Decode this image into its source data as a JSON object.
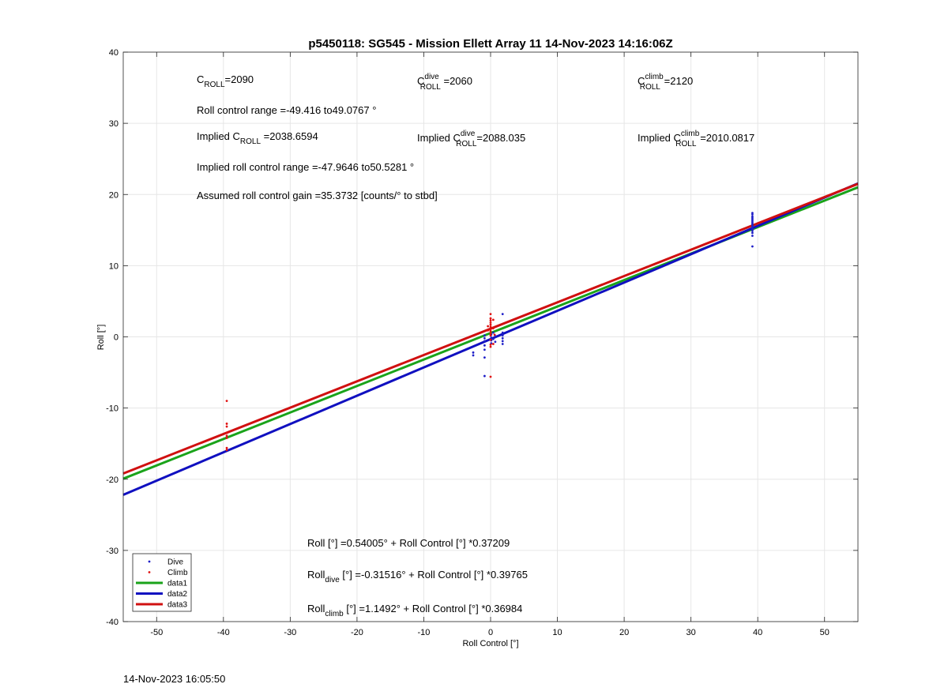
{
  "chart_data": {
    "type": "scatter",
    "title": "p5450118: SG545 - Mission Ellett Array 11 14-Nov-2023 14:16:06Z",
    "xlabel": "Roll Control [°]",
    "ylabel": "Roll [°]",
    "xlim": [
      -55,
      55
    ],
    "ylim": [
      -40,
      40
    ],
    "xticks": [
      -50,
      -40,
      -30,
      -20,
      -10,
      0,
      10,
      20,
      30,
      40,
      50
    ],
    "yticks": [
      -40,
      -30,
      -20,
      -10,
      0,
      10,
      20,
      30,
      40
    ],
    "grid": true,
    "legend_position": "bottom-left",
    "series": [
      {
        "name": "Dive",
        "kind": "points",
        "color": "#1f1fc8",
        "points": [
          [
            39.2,
            12.7
          ],
          [
            39.2,
            14.2
          ],
          [
            39.2,
            14.6
          ],
          [
            39.2,
            14.9
          ],
          [
            39.2,
            15.1
          ],
          [
            39.2,
            15.3
          ],
          [
            39.2,
            15.5
          ],
          [
            39.2,
            15.7
          ],
          [
            39.2,
            15.9
          ],
          [
            39.2,
            16.1
          ],
          [
            39.2,
            16.3
          ],
          [
            39.2,
            16.5
          ],
          [
            39.2,
            16.7
          ],
          [
            39.2,
            16.9
          ],
          [
            39.2,
            17.2
          ],
          [
            39.2,
            17.4
          ],
          [
            -0.9,
            -5.5
          ],
          [
            -0.9,
            -2.9
          ],
          [
            -0.9,
            -1.8
          ],
          [
            -0.9,
            -1.2
          ],
          [
            -0.9,
            -0.6
          ],
          [
            -0.9,
            -0.2
          ],
          [
            -0.9,
            0.2
          ],
          [
            -2.6,
            -2.2
          ],
          [
            -2.6,
            -2.6
          ],
          [
            0.1,
            -0.9
          ],
          [
            0.1,
            -0.5
          ],
          [
            0.1,
            -0.1
          ],
          [
            0.1,
            0.3
          ],
          [
            0.4,
            0.6
          ],
          [
            0.4,
            -0.3
          ],
          [
            0.7,
            -0.7
          ],
          [
            0.7,
            0.1
          ],
          [
            1.8,
            3.2
          ],
          [
            1.8,
            0.6
          ],
          [
            1.8,
            0.2
          ],
          [
            1.8,
            -0.2
          ],
          [
            1.8,
            -0.6
          ],
          [
            1.8,
            -1.0
          ]
        ]
      },
      {
        "name": "Climb",
        "kind": "points",
        "color": "#e01010",
        "points": [
          [
            -39.5,
            -9.0
          ],
          [
            -39.5,
            -12.2
          ],
          [
            -39.5,
            -12.6
          ],
          [
            -39.5,
            -13.5
          ],
          [
            -39.5,
            -13.9
          ],
          [
            -39.5,
            -14.2
          ],
          [
            -39.5,
            -15.6
          ],
          [
            -39.5,
            -15.9
          ],
          [
            0.0,
            3.2
          ],
          [
            0.0,
            2.6
          ],
          [
            0.0,
            2.3
          ],
          [
            0.0,
            2.0
          ],
          [
            0.0,
            1.7
          ],
          [
            0.0,
            1.4
          ],
          [
            0.0,
            1.1
          ],
          [
            0.0,
            0.8
          ],
          [
            0.0,
            0.5
          ],
          [
            0.0,
            0.2
          ],
          [
            0.0,
            -0.4
          ],
          [
            0.0,
            -1.1
          ],
          [
            0.0,
            -1.4
          ],
          [
            0.0,
            -5.6
          ],
          [
            -0.4,
            1.5
          ],
          [
            -0.4,
            0.9
          ],
          [
            0.4,
            2.4
          ],
          [
            0.4,
            1.2
          ],
          [
            0.4,
            -1.0
          ],
          [
            0.6,
            0.3
          ]
        ]
      },
      {
        "name": "data1",
        "kind": "line",
        "color": "#1aa31a",
        "intercept": 0.54005,
        "slope": 0.37209,
        "x": [
          -55,
          55
        ]
      },
      {
        "name": "data2",
        "kind": "line",
        "color": "#1010c0",
        "intercept": -0.31516,
        "slope": 0.39765,
        "x": [
          -55,
          55
        ]
      },
      {
        "name": "data3",
        "kind": "line",
        "color": "#d01010",
        "intercept": 1.1492,
        "slope": 0.36984,
        "x": [
          -55,
          55
        ]
      }
    ],
    "annotations": {
      "c_roll": {
        "pre": "C",
        "sub": "ROLL",
        "post": "=2090"
      },
      "c_roll_dive": {
        "pre": "C",
        "sup": "dive",
        "sub": "ROLL",
        "post": " =2060"
      },
      "c_roll_climb": {
        "pre": "C",
        "sup": "climb",
        "sub": "ROLL",
        "post": " =2120"
      },
      "roll_control_range": "Roll control range =-49.416 to49.0767 °",
      "implied_c_roll": {
        "pre": "Implied C",
        "sub": "ROLL",
        "post": " =2038.6594"
      },
      "implied_c_roll_dive": {
        "pre": "Implied C",
        "sup": "dive",
        "sub": "ROLL",
        "post": "=2088.035"
      },
      "implied_c_roll_climb": {
        "pre": "Implied C",
        "sup": "climb",
        "sub": "ROLL",
        "post": " =2010.0817"
      },
      "implied_range": "Implied roll control range =-47.9646 to50.5281 °",
      "gain": "Assumed roll control gain =35.3732 [counts/° to stbd]",
      "eq_all": {
        "pre": "Roll [°] =0.54005° + Roll Control [°] *0.37209"
      },
      "eq_dive": {
        "pre": "Roll",
        "sub": "dive",
        "post": " [°] =-0.31516° + Roll Control [°] *0.39765"
      },
      "eq_climb": {
        "pre": "Roll",
        "sub": "climb",
        "post": " [°] =1.1492° + Roll Control [°] *0.36984"
      }
    }
  },
  "footer": {
    "date": "14-Nov-2023 16:05:50"
  }
}
